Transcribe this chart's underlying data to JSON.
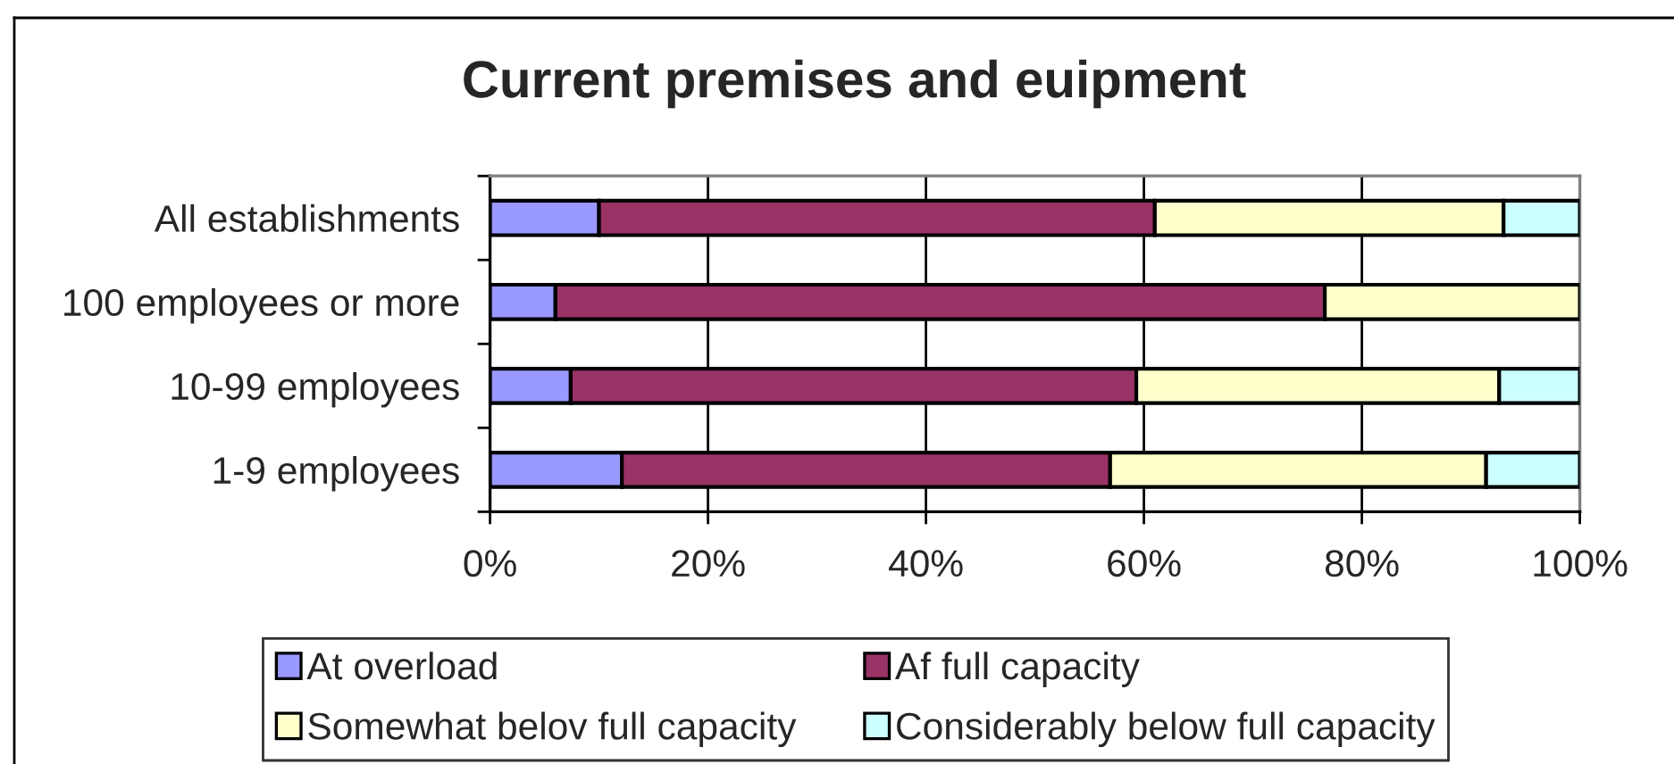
{
  "chart_data": {
    "type": "bar",
    "orientation": "horizontal",
    "stacked": true,
    "title": "Current premises and euipment",
    "categories": [
      "All establishments",
      "100 employees or more",
      "10-99 employees",
      "1-9 employees"
    ],
    "series": [
      {
        "name": "At overload",
        "color": "#9999ff",
        "values": [
          10,
          6,
          7.4,
          12.1
        ]
      },
      {
        "name": "Af full capacity",
        "color": "#993366",
        "values": [
          51,
          70.6,
          51.9,
          44.8
        ]
      },
      {
        "name": "Somewhat belov full capacity",
        "color": "#ffffcc",
        "values": [
          32,
          23.4,
          33.3,
          34.5
        ]
      },
      {
        "name": "Considerably below full capacity",
        "color": "#ccffff",
        "values": [
          7,
          null,
          7.4,
          8.6
        ]
      }
    ],
    "xlim": [
      0,
      100
    ],
    "xticks": [
      {
        "value": 0,
        "label": "0%"
      },
      {
        "value": 20,
        "label": "20%"
      },
      {
        "value": 40,
        "label": "40%"
      },
      {
        "value": 60,
        "label": "60%"
      },
      {
        "value": 80,
        "label": "80%"
      },
      {
        "value": 100,
        "label": "100%"
      }
    ],
    "grid": "x",
    "legend": "bottom"
  }
}
